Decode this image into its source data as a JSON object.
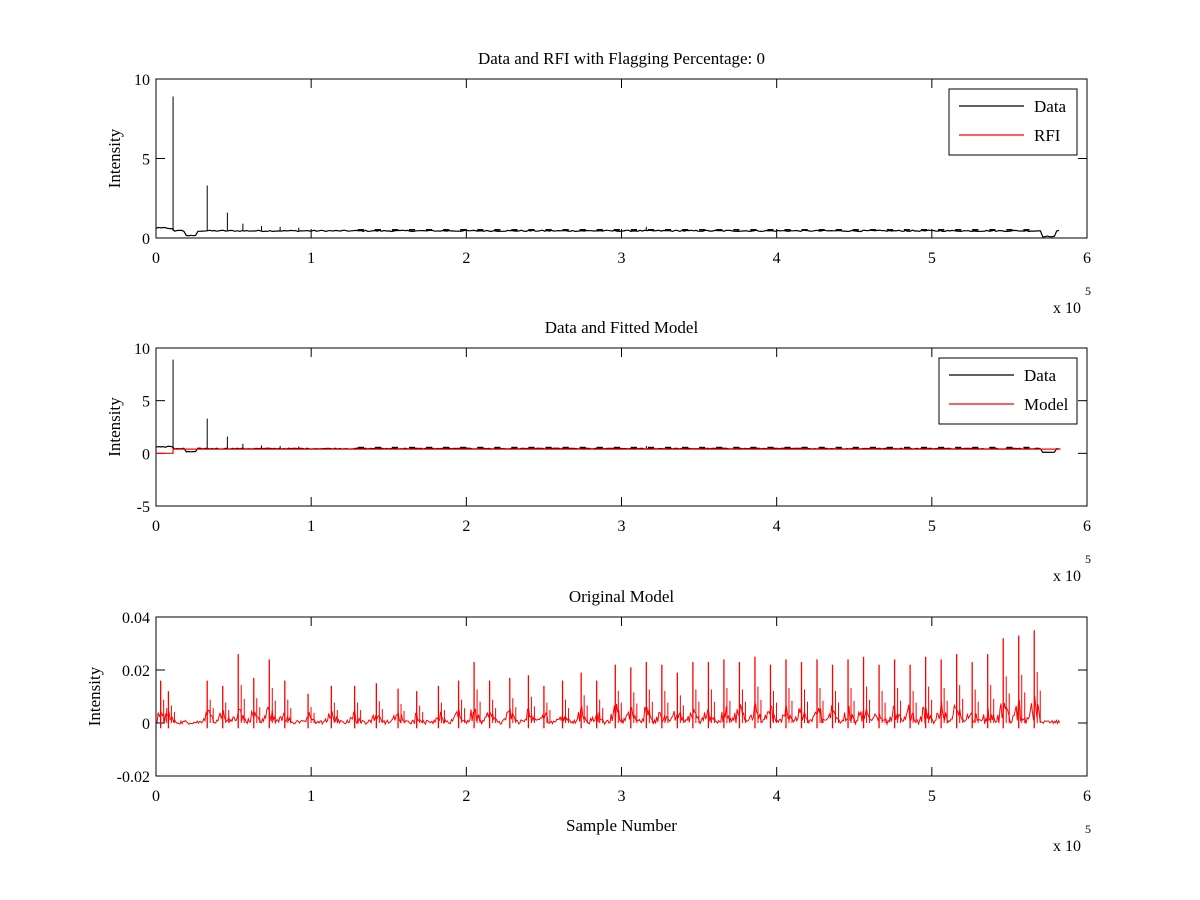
{
  "chart_data": [
    {
      "type": "line",
      "title": "Data and RFI with Flagging Percentage: 0",
      "xlabel": "",
      "ylabel": "Intensity",
      "xlim": [
        0,
        600000
      ],
      "ylim": [
        0,
        10
      ],
      "xticks": [
        0,
        100000,
        200000,
        300000,
        400000,
        500000,
        600000
      ],
      "xtick_labels": [
        "0",
        "1",
        "2",
        "3",
        "4",
        "5",
        "6"
      ],
      "yticks": [
        0,
        5,
        10
      ],
      "ytick_labels": [
        "0",
        "5",
        "10"
      ],
      "x_multiplier": {
        "base": "x 10",
        "exponent": "5"
      },
      "legend": {
        "placement": "top-right",
        "entries": [
          {
            "label": "Data",
            "color": "#000000"
          },
          {
            "label": "RFI",
            "color": "#ff0000"
          }
        ]
      },
      "baseline": 0.45,
      "x_end": 583000,
      "spikes": [
        {
          "x": 11000,
          "y": 8.9
        },
        {
          "x": 33000,
          "y": 3.3
        },
        {
          "x": 46000,
          "y": 1.6
        },
        {
          "x": 56000,
          "y": 0.9
        },
        {
          "x": 68000,
          "y": 0.75
        },
        {
          "x": 80000,
          "y": 0.7
        },
        {
          "x": 92000,
          "y": 0.65
        },
        {
          "x": 316000,
          "y": 0.7
        }
      ],
      "series": [
        {
          "name": "Data",
          "color": "#000000"
        },
        {
          "name": "RFI",
          "color": "#ff0000",
          "values": []
        }
      ]
    },
    {
      "type": "line",
      "title": "Data and Fitted Model",
      "xlabel": "",
      "ylabel": "Intensity",
      "xlim": [
        0,
        600000
      ],
      "ylim": [
        -5,
        10
      ],
      "xticks": [
        0,
        100000,
        200000,
        300000,
        400000,
        500000,
        600000
      ],
      "xtick_labels": [
        "0",
        "1",
        "2",
        "3",
        "4",
        "5",
        "6"
      ],
      "yticks": [
        -5,
        0,
        5,
        10
      ],
      "ytick_labels": [
        "-5",
        "0",
        "5",
        "10"
      ],
      "x_multiplier": {
        "base": "x 10",
        "exponent": "5"
      },
      "legend": {
        "placement": "top-right",
        "entries": [
          {
            "label": "Data",
            "color": "#000000"
          },
          {
            "label": "Model",
            "color": "#ff0000"
          }
        ]
      },
      "baseline": 0.45,
      "model_level": 0.4,
      "model_start": 11000,
      "x_end": 583000,
      "spikes": [
        {
          "x": 11000,
          "y": 8.9
        },
        {
          "x": 33000,
          "y": 3.3
        },
        {
          "x": 46000,
          "y": 1.6
        },
        {
          "x": 56000,
          "y": 0.9
        },
        {
          "x": 68000,
          "y": 0.75
        },
        {
          "x": 80000,
          "y": 0.7
        },
        {
          "x": 92000,
          "y": 0.65
        },
        {
          "x": 316000,
          "y": 0.7
        }
      ],
      "series": [
        {
          "name": "Data",
          "color": "#000000"
        },
        {
          "name": "Model",
          "color": "#ff0000"
        }
      ]
    },
    {
      "type": "line",
      "title": "Original Model",
      "xlabel": "Sample Number",
      "ylabel": "Intensity",
      "xlim": [
        0,
        600000
      ],
      "ylim": [
        -0.02,
        0.04
      ],
      "xticks": [
        0,
        100000,
        200000,
        300000,
        400000,
        500000,
        600000
      ],
      "xtick_labels": [
        "0",
        "1",
        "2",
        "3",
        "4",
        "5",
        "6"
      ],
      "yticks": [
        -0.02,
        0,
        0.02,
        0.04
      ],
      "ytick_labels": [
        "-0.02",
        "0",
        "0.02",
        "0.04"
      ],
      "x_multiplier": {
        "base": "x 10",
        "exponent": "5"
      },
      "x_end": 583000,
      "series": [
        {
          "name": "Model",
          "color": "#ff0000",
          "peaks": [
            {
              "x": 3000,
              "y": 0.016
            },
            {
              "x": 8000,
              "y": 0.012
            },
            {
              "x": 33000,
              "y": 0.016
            },
            {
              "x": 43000,
              "y": 0.014
            },
            {
              "x": 53000,
              "y": 0.026
            },
            {
              "x": 63000,
              "y": 0.017
            },
            {
              "x": 73000,
              "y": 0.024
            },
            {
              "x": 83000,
              "y": 0.016
            },
            {
              "x": 98000,
              "y": 0.011
            },
            {
              "x": 113000,
              "y": 0.014
            },
            {
              "x": 128000,
              "y": 0.014
            },
            {
              "x": 142000,
              "y": 0.015
            },
            {
              "x": 156000,
              "y": 0.013
            },
            {
              "x": 168000,
              "y": 0.012
            },
            {
              "x": 182000,
              "y": 0.014
            },
            {
              "x": 195000,
              "y": 0.016
            },
            {
              "x": 205000,
              "y": 0.023
            },
            {
              "x": 215000,
              "y": 0.016
            },
            {
              "x": 228000,
              "y": 0.017
            },
            {
              "x": 240000,
              "y": 0.018
            },
            {
              "x": 250000,
              "y": 0.014
            },
            {
              "x": 262000,
              "y": 0.016
            },
            {
              "x": 274000,
              "y": 0.019
            },
            {
              "x": 284000,
              "y": 0.016
            },
            {
              "x": 296000,
              "y": 0.022
            },
            {
              "x": 306000,
              "y": 0.021
            },
            {
              "x": 316000,
              "y": 0.023
            },
            {
              "x": 326000,
              "y": 0.022
            },
            {
              "x": 336000,
              "y": 0.019
            },
            {
              "x": 346000,
              "y": 0.023
            },
            {
              "x": 356000,
              "y": 0.023
            },
            {
              "x": 366000,
              "y": 0.024
            },
            {
              "x": 376000,
              "y": 0.023
            },
            {
              "x": 386000,
              "y": 0.025
            },
            {
              "x": 396000,
              "y": 0.022
            },
            {
              "x": 406000,
              "y": 0.024
            },
            {
              "x": 416000,
              "y": 0.023
            },
            {
              "x": 426000,
              "y": 0.024
            },
            {
              "x": 436000,
              "y": 0.022
            },
            {
              "x": 446000,
              "y": 0.024
            },
            {
              "x": 456000,
              "y": 0.025
            },
            {
              "x": 466000,
              "y": 0.022
            },
            {
              "x": 476000,
              "y": 0.024
            },
            {
              "x": 486000,
              "y": 0.022
            },
            {
              "x": 496000,
              "y": 0.025
            },
            {
              "x": 506000,
              "y": 0.024
            },
            {
              "x": 516000,
              "y": 0.026
            },
            {
              "x": 526000,
              "y": 0.023
            },
            {
              "x": 536000,
              "y": 0.026
            },
            {
              "x": 546000,
              "y": 0.032
            },
            {
              "x": 556000,
              "y": 0.033
            },
            {
              "x": 566000,
              "y": 0.035
            }
          ]
        }
      ]
    }
  ]
}
